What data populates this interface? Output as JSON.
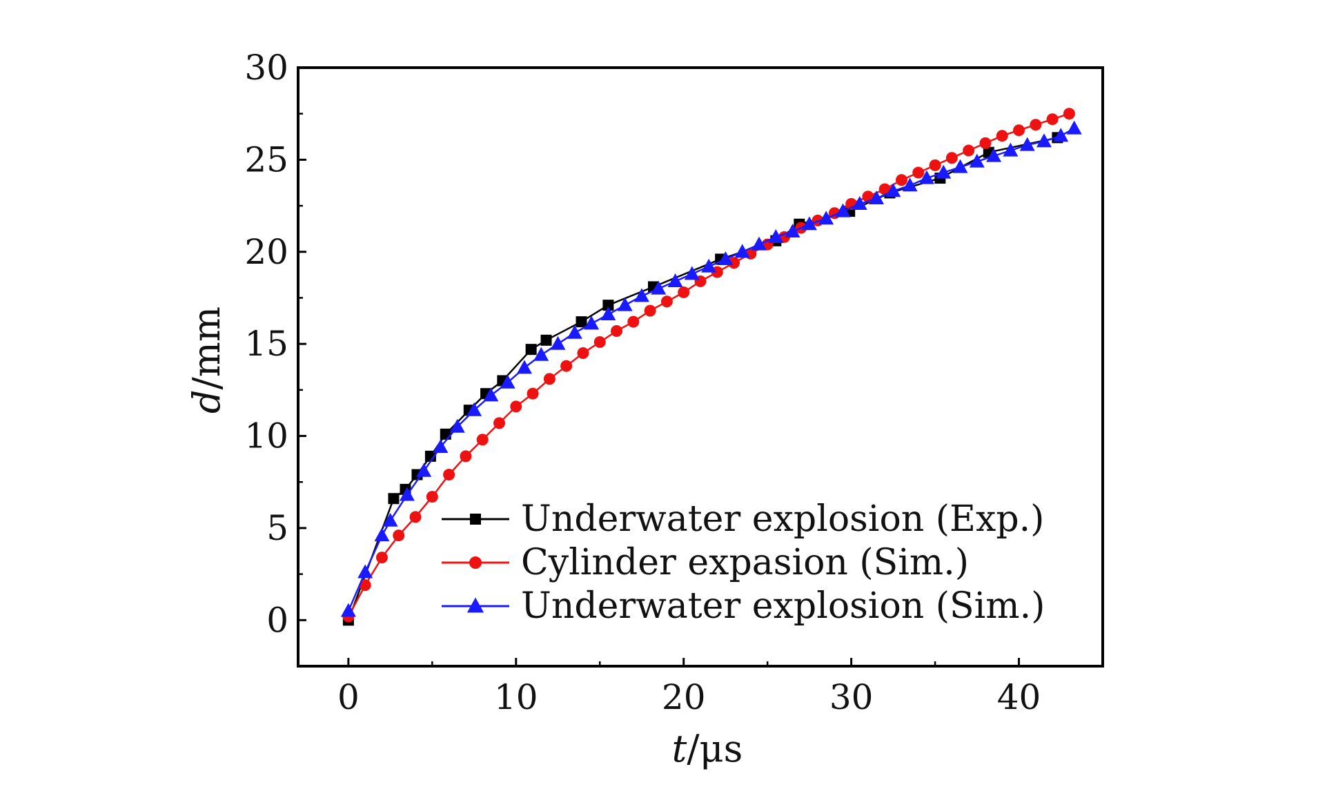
{
  "chart_data": {
    "type": "line",
    "title": "",
    "xlabel_var": "t",
    "xlabel_unit": "/μs",
    "ylabel_var": "d",
    "ylabel_unit": "/mm",
    "xlim": [
      -3,
      45
    ],
    "ylim": [
      -2.5,
      30
    ],
    "xticks": [
      0,
      10,
      20,
      30,
      40
    ],
    "yticks": [
      0,
      5,
      10,
      15,
      20,
      25,
      30
    ],
    "grid": false,
    "legend_position": "bottom-right",
    "series": [
      {
        "name": "Underwater explosion (Exp.)",
        "color": "#000000",
        "marker": "square",
        "x": [
          0,
          2.7,
          3.4,
          4.1,
          4.9,
          5.8,
          7.2,
          8.2,
          9.2,
          10.9,
          11.8,
          13.9,
          15.5,
          18.2,
          22.2,
          25.5,
          26.9,
          29.9,
          32.3,
          35.3,
          38.2,
          42.3
        ],
        "y": [
          0,
          6.6,
          7.1,
          7.9,
          8.9,
          10.1,
          11.4,
          12.3,
          13.0,
          14.7,
          15.2,
          16.2,
          17.1,
          18.1,
          19.6,
          20.6,
          21.5,
          22.2,
          23.2,
          24.0,
          25.4,
          26.2
        ]
      },
      {
        "name": "Cylinder expasion (Sim.)",
        "color": "#ee1111",
        "marker": "circle",
        "x": [
          0,
          1,
          2,
          3,
          4,
          5,
          6,
          7,
          8,
          9,
          10,
          11,
          12,
          13,
          14,
          15,
          16,
          17,
          18,
          19,
          20,
          21,
          22,
          23,
          24,
          25,
          26,
          27,
          28,
          29,
          30,
          31,
          32,
          33,
          34,
          35,
          36,
          37,
          38,
          39,
          40,
          41,
          42,
          43
        ],
        "y": [
          0.2,
          1.9,
          3.4,
          4.6,
          5.6,
          6.7,
          7.9,
          8.9,
          9.8,
          10.7,
          11.6,
          12.3,
          13.1,
          13.8,
          14.5,
          15.1,
          15.7,
          16.2,
          16.8,
          17.3,
          17.8,
          18.4,
          18.9,
          19.4,
          19.9,
          20.4,
          20.8,
          21.3,
          21.7,
          22.1,
          22.6,
          23.0,
          23.4,
          23.9,
          24.3,
          24.7,
          25.1,
          25.5,
          25.9,
          26.3,
          26.6,
          26.9,
          27.2,
          27.5
        ]
      },
      {
        "name": "Underwater explosion (Sim.)",
        "color": "#1a1aff",
        "marker": "triangle",
        "x": [
          0,
          1,
          2,
          2.5,
          3.5,
          4.5,
          5.5,
          6.5,
          7.5,
          8.5,
          9.5,
          10.5,
          11.5,
          12.5,
          13.5,
          14.5,
          15.5,
          16.5,
          17.5,
          18.5,
          19.5,
          20.5,
          21.5,
          22.5,
          23.5,
          24.5,
          25.5,
          26.5,
          27.5,
          28.5,
          29.5,
          30.5,
          31.5,
          32.5,
          33.5,
          34.5,
          35.5,
          36.5,
          37.5,
          38.5,
          39.5,
          40.5,
          41.5,
          42.5,
          43.3
        ],
        "y": [
          0.5,
          2.6,
          4.6,
          5.4,
          6.8,
          8.1,
          9.4,
          10.5,
          11.4,
          12.2,
          12.9,
          13.7,
          14.4,
          15.0,
          15.6,
          16.1,
          16.6,
          17.1,
          17.6,
          18.0,
          18.4,
          18.8,
          19.2,
          19.6,
          20.0,
          20.4,
          20.8,
          21.1,
          21.5,
          21.8,
          22.2,
          22.6,
          22.9,
          23.3,
          23.6,
          24.0,
          24.3,
          24.6,
          24.9,
          25.2,
          25.5,
          25.8,
          26.0,
          26.3,
          26.7
        ]
      }
    ]
  }
}
